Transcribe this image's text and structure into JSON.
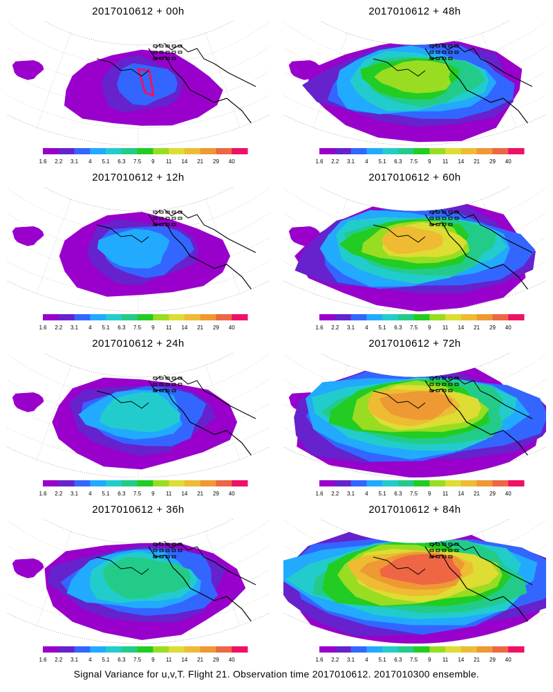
{
  "panels": [
    {
      "title": "2017010612 + 00h",
      "lead_hours": 0
    },
    {
      "title": "2017010612 + 48h",
      "lead_hours": 48
    },
    {
      "title": "2017010612 + 12h",
      "lead_hours": 12
    },
    {
      "title": "2017010612 + 60h",
      "lead_hours": 60
    },
    {
      "title": "2017010612 + 24h",
      "lead_hours": 24
    },
    {
      "title": "2017010612 + 72h",
      "lead_hours": 72
    },
    {
      "title": "2017010612 + 36h",
      "lead_hours": 36
    },
    {
      "title": "2017010612 + 84h",
      "lead_hours": 84
    }
  ],
  "legend": {
    "colors": [
      "#9900cc",
      "#6622cc",
      "#3366ff",
      "#22aaff",
      "#22cccc",
      "#22cc88",
      "#22cc22",
      "#99dd22",
      "#dddd33",
      "#eebb33",
      "#ee9933",
      "#ee6644",
      "#ee1166"
    ],
    "labels": [
      "1.6",
      "2.2",
      "3.1",
      "4",
      "5.1",
      "6.3",
      "7.5",
      "9",
      "11",
      "14",
      "21",
      "29",
      "40"
    ]
  },
  "footer": {
    "caption": "Signal Variance for u,v,T. Flight 21. Observation time 2017010612. 2017010300 ensemble."
  }
}
